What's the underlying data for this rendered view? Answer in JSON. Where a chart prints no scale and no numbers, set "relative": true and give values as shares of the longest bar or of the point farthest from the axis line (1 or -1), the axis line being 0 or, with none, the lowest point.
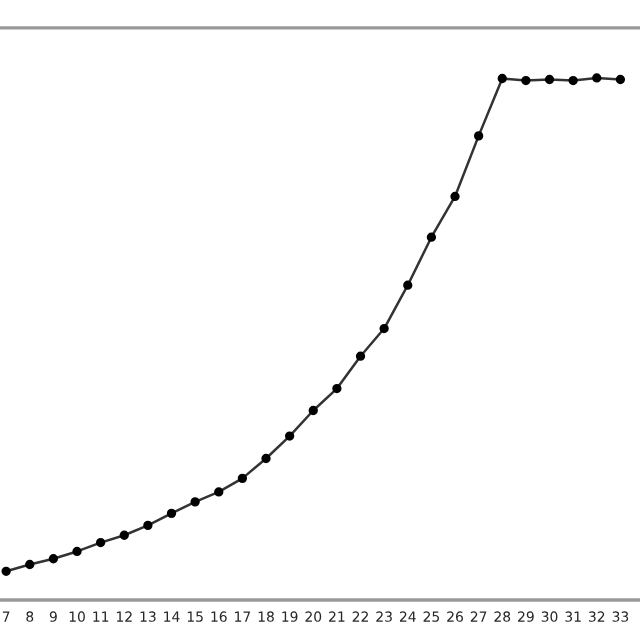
{
  "chart_data": {
    "type": "line",
    "relative": true,
    "marker": "circle",
    "line_style": "solid",
    "grid": false,
    "categories": [
      "7",
      "8",
      "9",
      "10",
      "11",
      "12",
      "13",
      "14",
      "15",
      "16",
      "17",
      "18",
      "19",
      "20",
      "21",
      "22",
      "23",
      "24",
      "25",
      "26",
      "27",
      "28",
      "29",
      "30",
      "31",
      "32",
      "33"
    ],
    "series": [
      {
        "color": "#333333",
        "values": [
          0.055,
          0.068,
          0.079,
          0.093,
          0.11,
          0.124,
          0.143,
          0.166,
          0.188,
          0.207,
          0.233,
          0.271,
          0.314,
          0.363,
          0.405,
          0.467,
          0.52,
          0.603,
          0.695,
          0.773,
          0.889,
          0.999,
          0.995,
          0.997,
          0.995,
          1.0,
          0.997
        ]
      }
    ]
  }
}
